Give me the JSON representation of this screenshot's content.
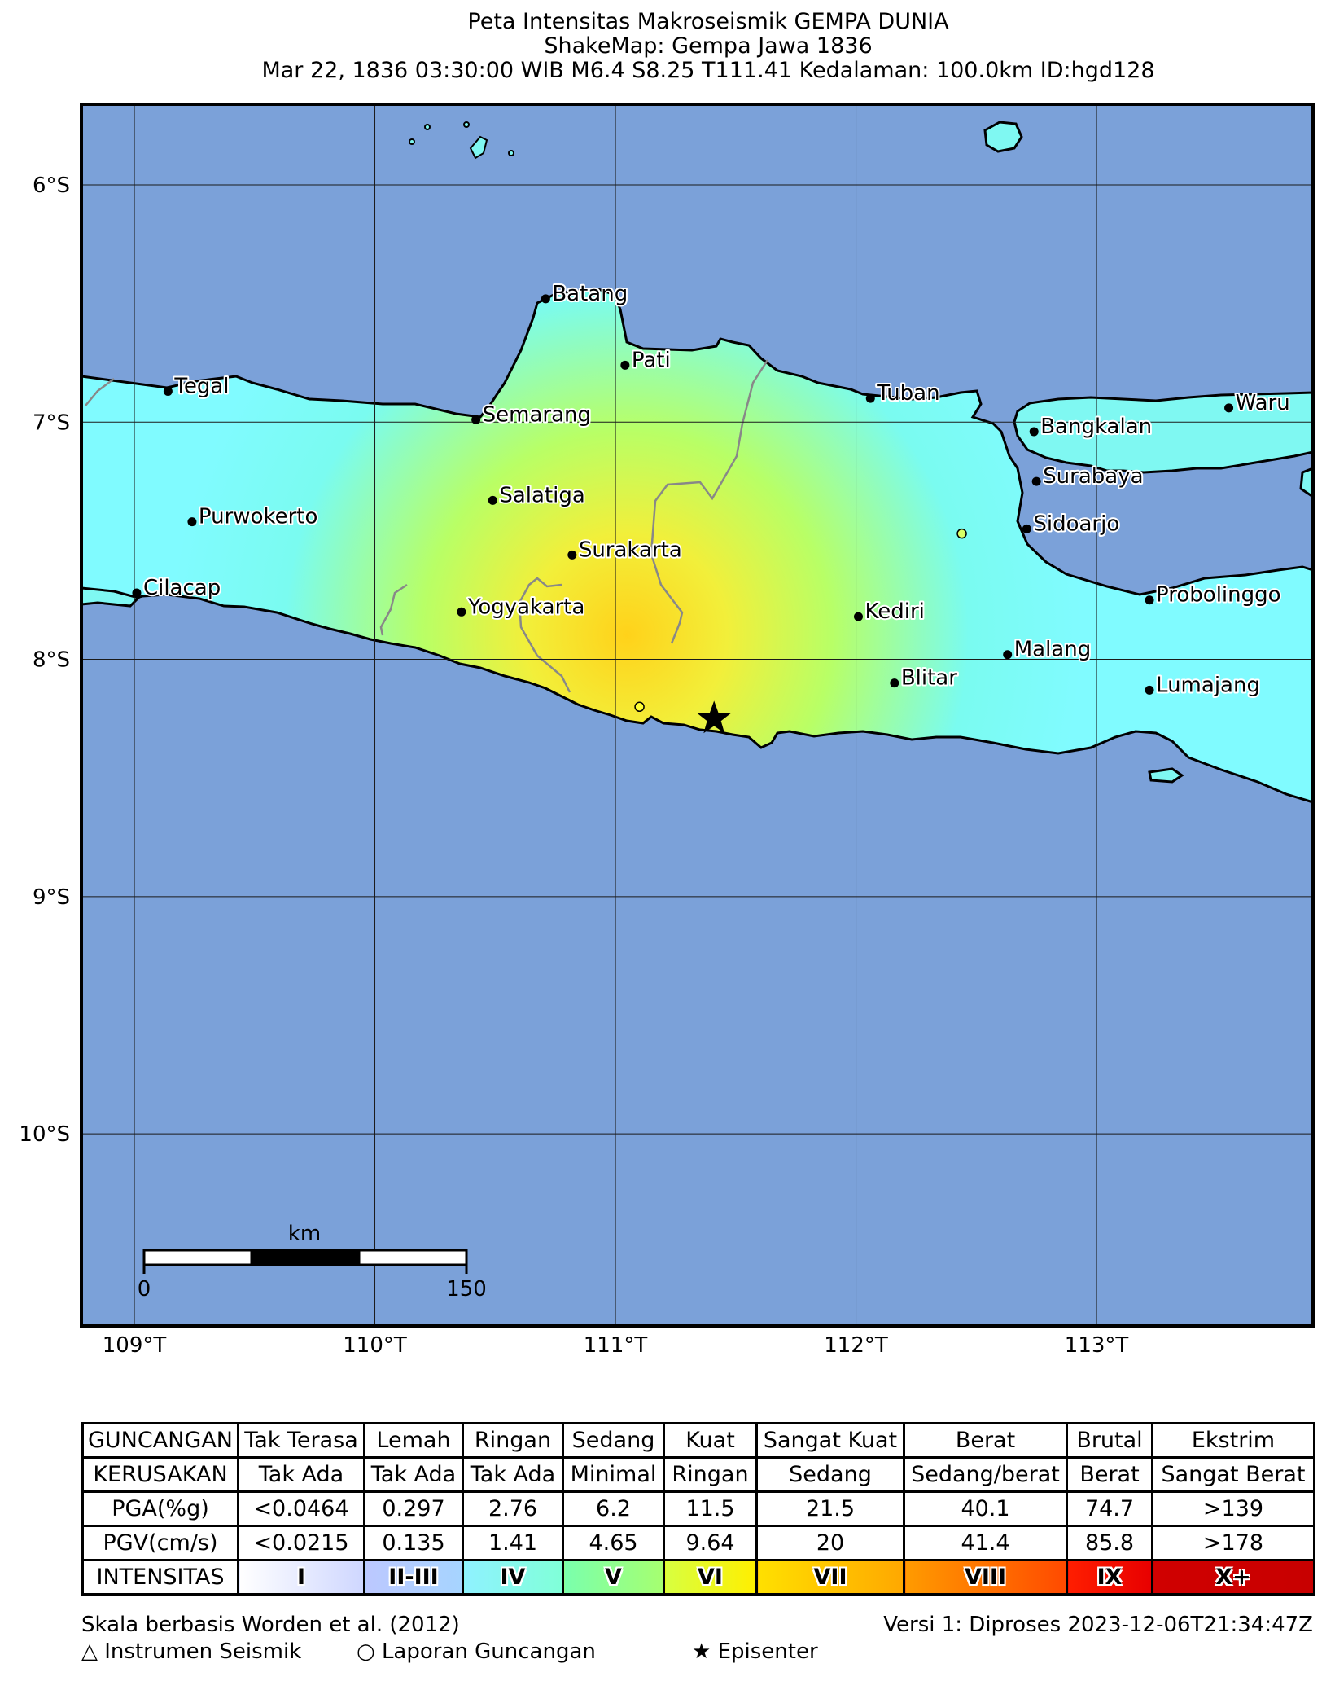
{
  "title": {
    "line1": "Peta Intensitas Makroseismik GEMPA DUNIA",
    "line2": "ShakeMap: Gempa Jawa 1836",
    "line3": "Mar 22, 1836 03:30:00 WIB M6.4 S8.25 T111.41 Kedalaman: 100.0km ID:hgd128"
  },
  "map": {
    "lat_labels": [
      "6°S",
      "7°S",
      "8°S",
      "9°S",
      "10°S"
    ],
    "lon_labels": [
      "109°T",
      "110°T",
      "111°T",
      "112°T",
      "113°T"
    ],
    "cities": [
      {
        "name": "Batang",
        "lon": 110.71,
        "lat": -6.48
      },
      {
        "name": "Pati",
        "lon": 111.04,
        "lat": -6.76
      },
      {
        "name": "Tegal",
        "lon": 109.14,
        "lat": -6.87
      },
      {
        "name": "Tuban",
        "lon": 112.06,
        "lat": -6.9
      },
      {
        "name": "Semarang",
        "lon": 110.42,
        "lat": -6.99
      },
      {
        "name": "Waru",
        "lon": 113.55,
        "lat": -6.94
      },
      {
        "name": "Bangkalan",
        "lon": 112.74,
        "lat": -7.04
      },
      {
        "name": "Surabaya",
        "lon": 112.75,
        "lat": -7.25
      },
      {
        "name": "Salatiga",
        "lon": 110.49,
        "lat": -7.33
      },
      {
        "name": "Purwokerto",
        "lon": 109.24,
        "lat": -7.42
      },
      {
        "name": "Sidoarjo",
        "lon": 112.71,
        "lat": -7.45
      },
      {
        "name": "Surakarta",
        "lon": 110.82,
        "lat": -7.56
      },
      {
        "name": "Cilacap",
        "lon": 109.01,
        "lat": -7.72
      },
      {
        "name": "Probolinggo",
        "lon": 113.22,
        "lat": -7.75
      },
      {
        "name": "Yogyakarta",
        "lon": 110.36,
        "lat": -7.8
      },
      {
        "name": "Kediri",
        "lon": 112.01,
        "lat": -7.82
      },
      {
        "name": "Malang",
        "lon": 112.63,
        "lat": -7.98
      },
      {
        "name": "Blitar",
        "lon": 112.16,
        "lat": -8.1
      },
      {
        "name": "Lumajang",
        "lon": 113.22,
        "lat": -8.13
      }
    ],
    "epicenter": {
      "lon": 111.41,
      "lat": -8.25
    },
    "reports": [
      {
        "lon": 111.1,
        "lat": -8.2,
        "color": "#ffff33"
      },
      {
        "lon": 112.44,
        "lat": -7.47,
        "color": "#d8ff66"
      }
    ],
    "scale_bar": {
      "unit": "km",
      "start": "0",
      "end": "150"
    },
    "colors": {
      "ocean": "#7ba1d9",
      "land_low": "#7afbf0",
      "land_mid": "#b8ff66",
      "land_high": "#ffd21a",
      "grid": "#1a1a1a"
    }
  },
  "legend": {
    "guncangan_label": "GUNCANGAN",
    "kerusakan_label": "KERUSAKAN",
    "pga_label": "PGA(%g)",
    "pgv_label": "PGV(cm/s)",
    "intensitas_label": "INTENSITAS",
    "guncangan": [
      "Tak Terasa",
      "Lemah",
      "Ringan",
      "Sedang",
      "Kuat",
      "Sangat Kuat",
      "Berat",
      "Brutal",
      "Ekstrim"
    ],
    "kerusakan": [
      "Tak Ada",
      "Tak Ada",
      "Tak Ada",
      "Minimal",
      "Ringan",
      "Sedang",
      "Sedang/berat",
      "Berat",
      "Sangat Berat"
    ],
    "pga": [
      "<0.0464",
      "0.297",
      "2.76",
      "6.2",
      "11.5",
      "21.5",
      "40.1",
      "74.7",
      ">139"
    ],
    "pgv": [
      "<0.0215",
      "0.135",
      "1.41",
      "4.65",
      "9.64",
      "20",
      "41.4",
      "85.8",
      ">178"
    ],
    "intensitas": [
      "I",
      "II-III",
      "IV",
      "V",
      "VI",
      "VII",
      "VIII",
      "IX",
      "X+"
    ],
    "intensity_colors": [
      [
        "#ffffff",
        "#cfd7ff"
      ],
      [
        "#bcc8ff",
        "#a6d4ff"
      ],
      [
        "#8ff2ff",
        "#80ffd8"
      ],
      [
        "#7affad",
        "#a6ff70"
      ],
      [
        "#d8ff40",
        "#ffef00"
      ],
      [
        "#ffe000",
        "#ffa800"
      ],
      [
        "#ff9b00",
        "#ff4a00"
      ],
      [
        "#ff1e00",
        "#e80000"
      ],
      [
        "#d00000",
        "#c80000"
      ]
    ]
  },
  "footer": {
    "scale_note": "Skala berbasis Worden et al. (2012)",
    "version": "Versi 1: Diproses 2023-12-06T21:34:47Z",
    "instrument": "△ Instrumen Seismik",
    "report": "○ Laporan Guncangan",
    "epicenter": "★ Episenter"
  }
}
